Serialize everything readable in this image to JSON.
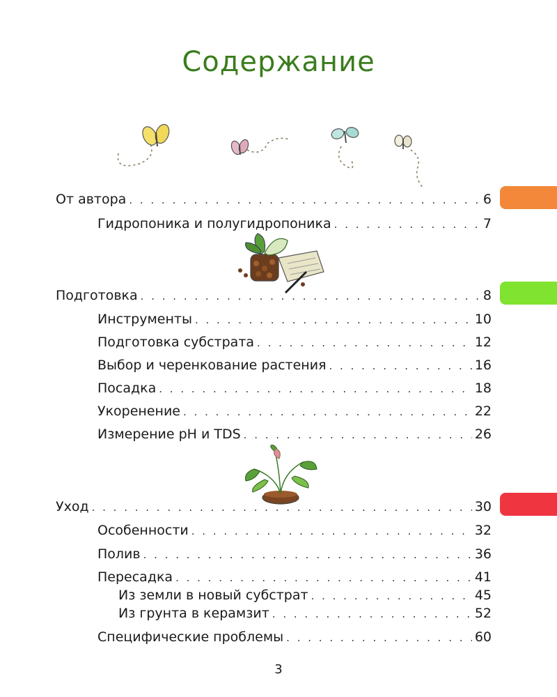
{
  "title": "Содержание",
  "colors": {
    "title": "#3a7d1e",
    "tab_orange": "#f3883a",
    "tab_green": "#7fe32f",
    "tab_red": "#ef3640"
  },
  "toc": [
    {
      "label": "От автора",
      "page": "6",
      "level": 1
    },
    {
      "label": "Гидропоника и полугидропоника",
      "page": "7",
      "level": 2
    },
    {
      "label": "Подготовка",
      "page": "8",
      "level": 1
    },
    {
      "label": "Инструменты",
      "page": "10",
      "level": 2
    },
    {
      "label": "Подготовка субстрата",
      "page": "12",
      "level": 2
    },
    {
      "label": "Выбор и черенкование растения",
      "page": "16",
      "level": 2
    },
    {
      "label": "Посадка",
      "page": "18",
      "level": 2
    },
    {
      "label": "Укоренение",
      "page": "22",
      "level": 2
    },
    {
      "label": "Измерение pH и TDS",
      "page": "26",
      "level": 2
    },
    {
      "label": "Уход",
      "page": "30",
      "level": 1
    },
    {
      "label": "Особенности",
      "page": "32",
      "level": 2
    },
    {
      "label": "Полив",
      "page": "36",
      "level": 2
    },
    {
      "label": "Пересадка",
      "page": "41",
      "level": 2
    },
    {
      "label": "Из земли в новый субстрат",
      "page": "45",
      "level": 3
    },
    {
      "label": "Из грунта в керамзит",
      "page": "52",
      "level": 3
    },
    {
      "label": "Специфические проблемы",
      "page": "60",
      "level": 2
    }
  ],
  "page_number": "3"
}
